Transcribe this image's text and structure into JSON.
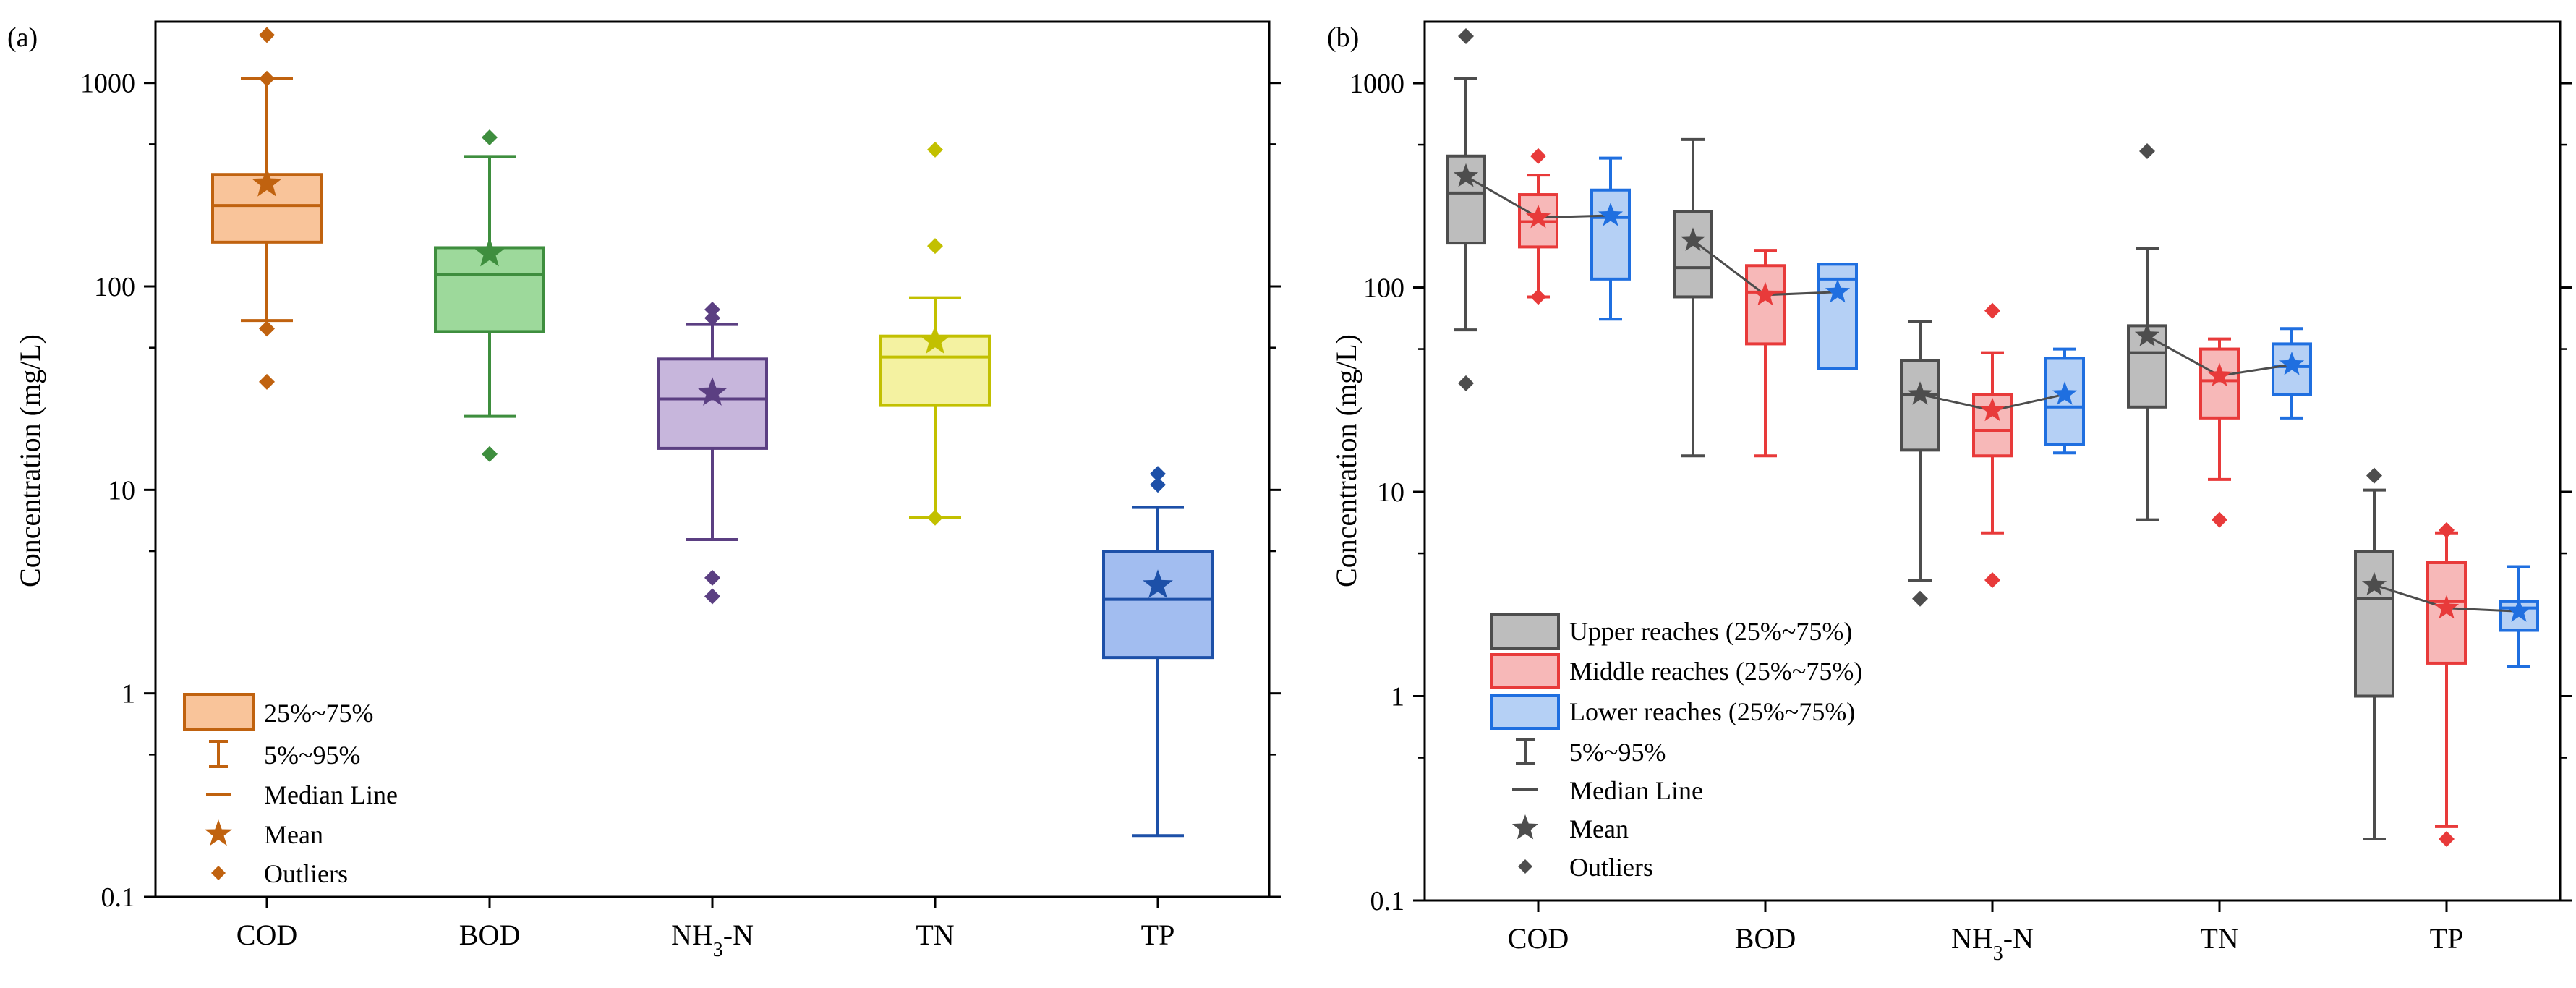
{
  "figure": {
    "panel_a_label": "(a)",
    "panel_b_label": "(b)"
  },
  "chart_data": [
    {
      "type": "box",
      "panel": "(a)",
      "ylabel": "Concentration (mg/L)",
      "yscale": "log",
      "ylim": [
        0.1,
        2000
      ],
      "yticks": [
        0.1,
        1,
        10,
        100,
        1000
      ],
      "ytick_labels": [
        "0.1",
        "1",
        "10",
        "100",
        "1000"
      ],
      "categories": [
        "COD",
        "BOD",
        "NH3-N",
        "TN",
        "TP"
      ],
      "category_labels": [
        {
          "main": "COD",
          "sub": "",
          "rest": ""
        },
        {
          "main": "BOD",
          "sub": "",
          "rest": ""
        },
        {
          "main": "NH",
          "sub": "3",
          "rest": "-N"
        },
        {
          "main": "TN",
          "sub": "",
          "rest": ""
        },
        {
          "main": "TP",
          "sub": "",
          "rest": ""
        }
      ],
      "colors": [
        "#C0620F",
        "#3E8E3E",
        "#5B3F82",
        "#C2C000",
        "#1D50A8"
      ],
      "fills": [
        "#F9C49A",
        "#9DD99B",
        "#C7B6DC",
        "#F4F2A1",
        "#A2BDF0"
      ],
      "boxes": [
        {
          "q1": 165,
          "median": 250,
          "q3": 355,
          "mean": 320,
          "whisker_low": 68,
          "whisker_high": 1050,
          "outliers": [
            1720,
            1050,
            62,
            34
          ]
        },
        {
          "q1": 60,
          "median": 115,
          "q3": 155,
          "mean": 145,
          "whisker_low": 23,
          "whisker_high": 435,
          "outliers": [
            540,
            15
          ]
        },
        {
          "q1": 16,
          "median": 28,
          "q3": 44,
          "mean": 30,
          "whisker_low": 5.7,
          "whisker_high": 65,
          "outliers": [
            77,
            70,
            3.7,
            3
          ]
        },
        {
          "q1": 26,
          "median": 45,
          "q3": 57,
          "mean": 54,
          "whisker_low": 7.3,
          "whisker_high": 88,
          "outliers": [
            470,
            158,
            7.3
          ]
        },
        {
          "q1": 1.5,
          "median": 2.9,
          "q3": 5.0,
          "mean": 3.4,
          "whisker_low": 0.2,
          "whisker_high": 8.2,
          "outliers": [
            12,
            10.6
          ]
        }
      ],
      "legend": {
        "position": "bottom-left",
        "items": [
          "25%~75%",
          "5%~95%",
          "Median Line",
          "Mean",
          "Outliers"
        ]
      }
    },
    {
      "type": "box",
      "panel": "(b)",
      "ylabel": "Concentration (mg/L)",
      "yscale": "log",
      "ylim": [
        0.1,
        2000
      ],
      "yticks": [
        0.1,
        1,
        10,
        100,
        1000
      ],
      "ytick_labels": [
        "0.1",
        "1",
        "10",
        "100",
        "1000"
      ],
      "categories": [
        "COD",
        "BOD",
        "NH3-N",
        "TN",
        "TP"
      ],
      "category_labels": [
        {
          "main": "COD",
          "sub": "",
          "rest": ""
        },
        {
          "main": "BOD",
          "sub": "",
          "rest": ""
        },
        {
          "main": "NH",
          "sub": "3",
          "rest": "-N"
        },
        {
          "main": "TN",
          "sub": "",
          "rest": ""
        },
        {
          "main": "TP",
          "sub": "",
          "rest": ""
        }
      ],
      "series": [
        {
          "name": "Upper reaches",
          "color": "#4D4D4D",
          "fill": "#BDBDBD",
          "boxes": [
            {
              "q1": 165,
              "median": 290,
              "q3": 440,
              "mean": 350,
              "whisker_low": 62,
              "whisker_high": 1050,
              "outliers": [
                1700,
                34
              ]
            },
            {
              "q1": 90,
              "median": 125,
              "q3": 235,
              "mean": 170,
              "whisker_low": 15,
              "whisker_high": 530,
              "outliers": []
            },
            {
              "q1": 16,
              "median": 30,
              "q3": 44,
              "mean": 30,
              "whisker_low": 3.7,
              "whisker_high": 68,
              "outliers": [
                3
              ]
            },
            {
              "q1": 26,
              "median": 48,
              "q3": 65,
              "mean": 58,
              "whisker_low": 7.3,
              "whisker_high": 155,
              "outliers": [
                465
              ]
            },
            {
              "q1": 1.0,
              "median": 3.0,
              "q3": 5.1,
              "mean": 3.5,
              "whisker_low": 0.2,
              "whisker_high": 10.2,
              "outliers": [
                12
              ]
            }
          ]
        },
        {
          "name": "Middle reaches",
          "color": "#E83A3A",
          "fill": "#F7B8B8",
          "boxes": [
            {
              "q1": 158,
              "median": 210,
              "q3": 285,
              "mean": 220,
              "whisker_low": 90,
              "whisker_high": 355,
              "outliers": [
                440,
                90
              ]
            },
            {
              "q1": 53,
              "median": 95,
              "q3": 128,
              "mean": 92,
              "whisker_low": 15,
              "whisker_high": 152,
              "outliers": []
            },
            {
              "q1": 15,
              "median": 20,
              "q3": 30,
              "mean": 25,
              "whisker_low": 6.3,
              "whisker_high": 48,
              "outliers": [
                77,
                3.7
              ]
            },
            {
              "q1": 23,
              "median": 35,
              "q3": 50,
              "mean": 37,
              "whisker_low": 11.5,
              "whisker_high": 56,
              "outliers": [
                7.3
              ]
            },
            {
              "q1": 1.45,
              "median": 2.9,
              "q3": 4.5,
              "mean": 2.7,
              "whisker_low": 0.23,
              "whisker_high": 6.3,
              "outliers": [
                6.5,
                0.2
              ]
            }
          ]
        },
        {
          "name": "Lower reaches",
          "color": "#1F6FE0",
          "fill": "#B5D0F5",
          "boxes": [
            {
              "q1": 110,
              "median": 220,
              "q3": 300,
              "mean": 225,
              "whisker_low": 70,
              "whisker_high": 430,
              "outliers": []
            },
            {
              "q1": 40,
              "median": 110,
              "q3": 130,
              "mean": 95,
              "whisker_low": 40,
              "whisker_high": 130,
              "outliers": []
            },
            {
              "q1": 17,
              "median": 26,
              "q3": 45,
              "mean": 30,
              "whisker_low": 15.5,
              "whisker_high": 50,
              "outliers": []
            },
            {
              "q1": 30,
              "median": 41,
              "q3": 53,
              "mean": 42,
              "whisker_low": 23,
              "whisker_high": 63,
              "outliers": []
            },
            {
              "q1": 2.1,
              "median": 2.7,
              "q3": 2.9,
              "mean": 2.6,
              "whisker_low": 1.4,
              "whisker_high": 4.3,
              "outliers": []
            }
          ]
        }
      ],
      "legend": {
        "position": "bottom-left",
        "items": [
          "Upper reaches (25%~75%)",
          "Middle reaches (25%~75%)",
          "Lower reaches (25%~75%)",
          "5%~95%",
          "Median Line",
          "Mean",
          "Outliers"
        ]
      }
    }
  ]
}
